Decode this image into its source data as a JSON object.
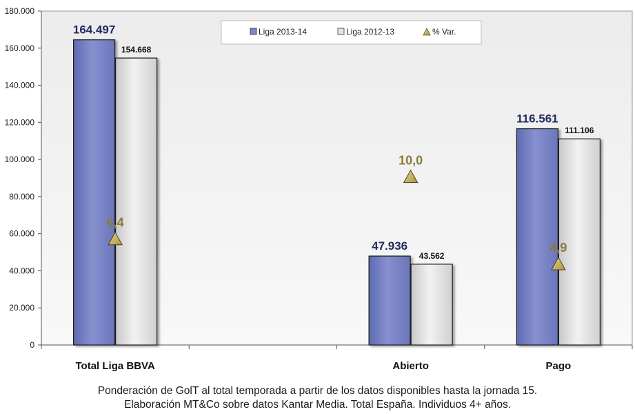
{
  "chart_data": {
    "type": "bar",
    "categories": [
      "Total Liga BBVA",
      "",
      "Abierto",
      "Pago"
    ],
    "series": [
      {
        "name": "Liga 2013-14",
        "values": [
          164497,
          null,
          47936,
          116561
        ],
        "labels": [
          "164.497",
          "",
          "47.936",
          "116.561"
        ],
        "color": "#7b86c6"
      },
      {
        "name": "Liga 2012-13",
        "values": [
          154668,
          null,
          43562,
          111106
        ],
        "labels": [
          "154.668",
          "",
          "43.562",
          "111.106"
        ],
        "color": "#e4e4e4"
      }
    ],
    "variation": {
      "name": "% Var.",
      "values": [
        6.4,
        null,
        10.0,
        4.9
      ],
      "labels": [
        "6,4",
        "",
        "10,0",
        "4,9"
      ],
      "plot_y": [
        57000,
        null,
        90500,
        43500
      ],
      "color": "#c9b66a"
    },
    "ylim": [
      0,
      180000
    ],
    "yticks": [
      0,
      20000,
      40000,
      60000,
      80000,
      100000,
      120000,
      140000,
      160000,
      180000
    ],
    "ytick_labels": [
      "0",
      "20.000",
      "40.000",
      "60.000",
      "80.000",
      "100.000",
      "120.000",
      "140.000",
      "160.000",
      "180.000"
    ],
    "legend": [
      "Liga 2013-14",
      "Liga 2012-13",
      "% Var."
    ],
    "legend_position": "top-center",
    "grid": false
  },
  "caption": {
    "line1": "Ponderación de GolT al total temporada a partir de los datos disponibles hasta la jornada 15.",
    "line2": "Elaboración MT&Co sobre datos Kantar Media. Total España. Individuos 4+ años."
  }
}
